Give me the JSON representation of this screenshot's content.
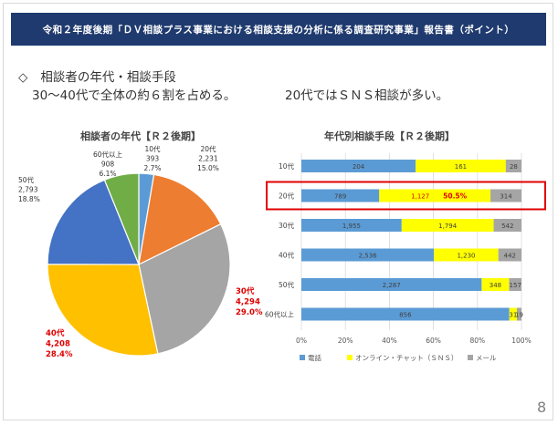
{
  "header": {
    "title": "令和２年度後期「ＤＶ相談プラス事業における相談支援の分析に係る調査研究事業」報告書（ポイント）"
  },
  "summary": {
    "bullet": "◇",
    "heading": "相談者の年代・相談手段",
    "line1": "30～40代で全体の約６割を占める。",
    "line2": "20代ではＳＮＳ相談が多い。"
  },
  "page_number": "8",
  "chart_data": [
    {
      "type": "pie",
      "title": "相談者の年代【Ｒ２後期】",
      "slices": [
        {
          "label": "10代",
          "value": 393,
          "value_text": "393",
          "percent": "2.7%",
          "color": "#5b9bd5",
          "label_color": "#333333"
        },
        {
          "label": "20代",
          "value": 2231,
          "value_text": "2,231",
          "percent": "15.0%",
          "color": "#ed7d31",
          "label_color": "#333333"
        },
        {
          "label": "30代",
          "value": 4294,
          "value_text": "4,294",
          "percent": "29.0%",
          "color": "#a5a5a5",
          "label_color": "#e00000"
        },
        {
          "label": "40代",
          "value": 4208,
          "value_text": "4,208",
          "percent": "28.4%",
          "color": "#ffc000",
          "label_color": "#e00000"
        },
        {
          "label": "50代",
          "value": 2793,
          "value_text": "2,793",
          "percent": "18.8%",
          "color": "#4472c4",
          "label_color": "#333333"
        },
        {
          "label": "60代以上",
          "value": 908,
          "value_text": "908",
          "percent": "6.1%",
          "color": "#70ad47",
          "label_color": "#333333"
        }
      ]
    },
    {
      "type": "bar",
      "orientation": "horizontal-stacked-100",
      "title": "年代別相談手段【Ｒ２後期】",
      "categories": [
        "10代",
        "20代",
        "30代",
        "40代",
        "50代",
        "60代以上"
      ],
      "series": [
        {
          "name": "電話",
          "color": "#5b9bd5",
          "values": [
            204,
            789,
            1955,
            2536,
            2287,
            856
          ],
          "labels": [
            "204",
            "789",
            "1,955",
            "2,536",
            "2,287",
            "856"
          ]
        },
        {
          "name": "オンライン・チャット（ＳＮＳ）",
          "color": "#ffff00",
          "values": [
            161,
            1127,
            1794,
            1230,
            348,
            31
          ],
          "labels": [
            "161",
            "1,127",
            "1,794",
            "1,230",
            "348",
            "31"
          ]
        },
        {
          "name": "メール",
          "color": "#a5a5a5",
          "values": [
            28,
            314,
            542,
            442,
            157,
            19
          ],
          "labels": [
            "28",
            "314",
            "542",
            "442",
            "157",
            "19"
          ]
        }
      ],
      "x_ticks": [
        "0%",
        "20%",
        "40%",
        "60%",
        "80%",
        "100%"
      ],
      "highlight": {
        "category": "20代",
        "annotation": "50.5%",
        "color": "#e00000"
      },
      "legend_position": "bottom",
      "grid": true
    }
  ]
}
